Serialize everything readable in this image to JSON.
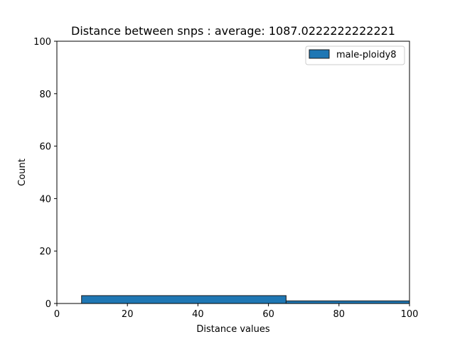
{
  "chart_data": {
    "type": "bar",
    "title": "Distance between snps : average: 1087.0222222222221",
    "xlabel": "Distance values",
    "ylabel": "Count",
    "xlim": [
      0,
      100
    ],
    "ylim": [
      0,
      100
    ],
    "xticks": [
      0,
      20,
      40,
      60,
      80,
      100
    ],
    "yticks": [
      0,
      20,
      40,
      60,
      80,
      100
    ],
    "grid": false,
    "legend_position": "top-right",
    "series": [
      {
        "name": "male-ploidy8",
        "color": "#1f77b4",
        "edge_color": "#1a1a1a",
        "bins": [
          {
            "x_start": 7,
            "x_end": 65,
            "count": 3
          },
          {
            "x_start": 65,
            "x_end": 123,
            "count": 1
          }
        ]
      }
    ]
  }
}
